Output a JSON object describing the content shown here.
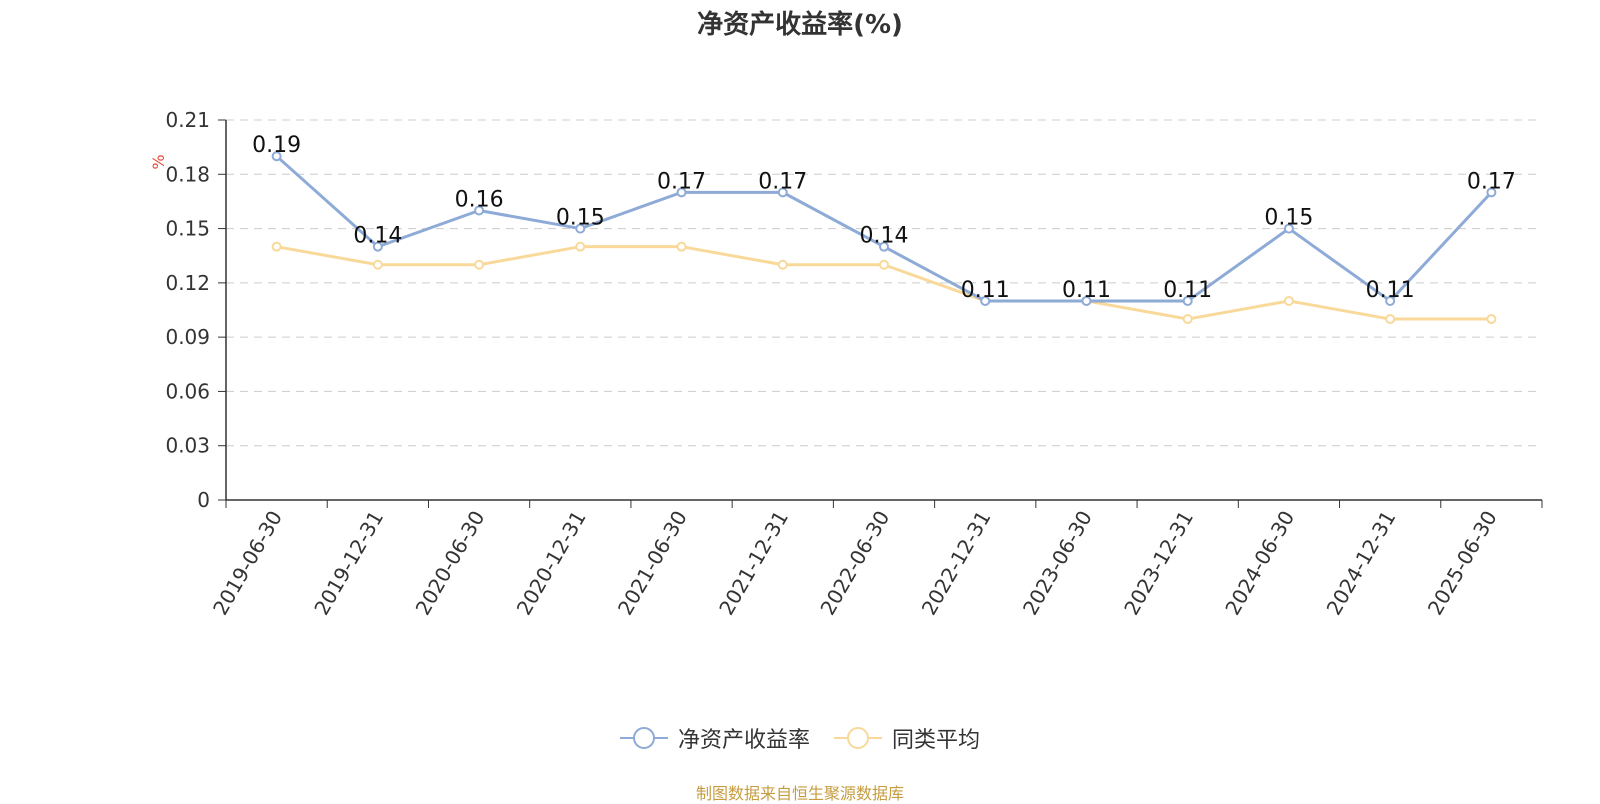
{
  "title": "净资产收益率(%)",
  "source": "制图数据来自恒生聚源数据库",
  "colors": {
    "series1": "#8eaad6",
    "series2": "#f9d99a",
    "unit": "#e74c3c",
    "grid": "#cccccc",
    "axis": "#333333"
  },
  "chart_data": {
    "type": "line",
    "title": "净资产收益率(%)",
    "ylabel": "%",
    "xlabel": "",
    "ylim": [
      0,
      0.21
    ],
    "yticks": [
      "0",
      "0.03",
      "0.06",
      "0.09",
      "0.12",
      "0.15",
      "0.18",
      "0.21"
    ],
    "grid": true,
    "legend_position": "bottom",
    "categories": [
      "2019-06-30",
      "2019-12-31",
      "2020-06-30",
      "2020-12-31",
      "2021-06-30",
      "2021-12-31",
      "2022-06-30",
      "2022-12-31",
      "2023-06-30",
      "2023-12-31",
      "2024-06-30",
      "2024-12-31",
      "2025-06-30"
    ],
    "series": [
      {
        "name": "净资产收益率",
        "values": [
          0.19,
          0.14,
          0.16,
          0.15,
          0.17,
          0.17,
          0.14,
          0.11,
          0.11,
          0.11,
          0.15,
          0.11,
          0.17
        ],
        "show_labels": true
      },
      {
        "name": "同类平均",
        "values": [
          0.14,
          0.13,
          0.13,
          0.14,
          0.14,
          0.13,
          0.13,
          0.11,
          0.11,
          0.1,
          0.11,
          0.1,
          0.1
        ],
        "show_labels": false
      }
    ]
  },
  "legend": {
    "item1": "净资产收益率",
    "item2": "同类平均"
  }
}
